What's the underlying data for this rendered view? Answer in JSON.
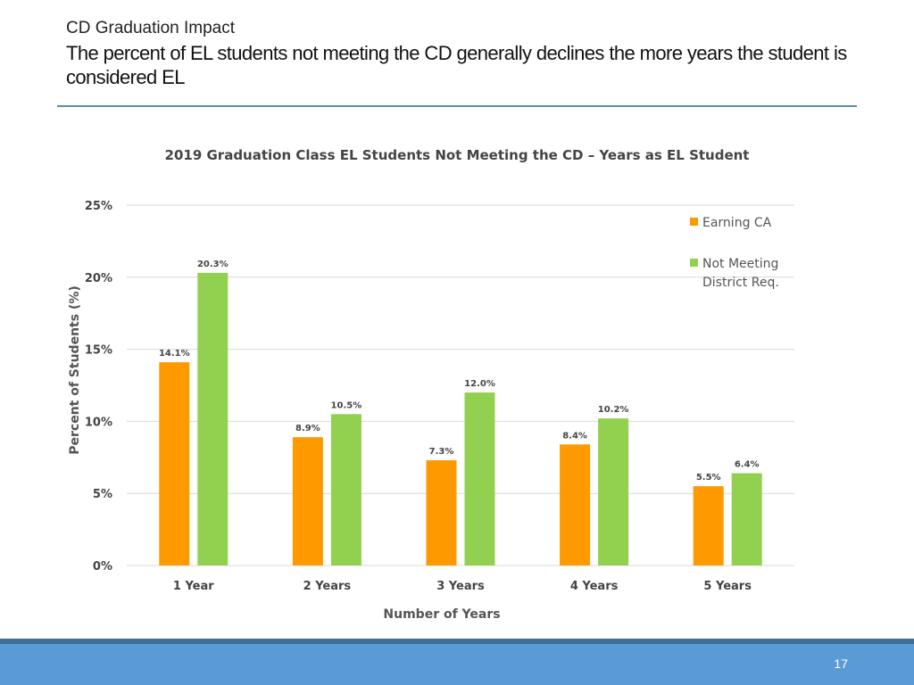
{
  "slide": {
    "title": "CD Graduation Impact",
    "subtitle": "The percent of EL students not meeting the CD generally declines the more years the student is considered EL",
    "page_number": "17"
  },
  "colors": {
    "earning_ca": "#ff9900",
    "not_meeting": "#92d050",
    "gridline": "#d9d9d9",
    "header_rule": "#5e8fa6",
    "footer": "#5b9bd5"
  },
  "chart_data": {
    "type": "bar",
    "title": "2019 Graduation Class EL Students Not Meeting the CD – Years as EL Student",
    "xlabel": "Number of Years",
    "ylabel": "Percent of Students (%)",
    "categories": [
      "1 Year",
      "2 Years",
      "3 Years",
      "4 Years",
      "5 Years"
    ],
    "ylim": [
      0,
      25
    ],
    "yticks": [
      0,
      5,
      10,
      15,
      20,
      25
    ],
    "ytick_labels": [
      "0%",
      "5%",
      "10%",
      "15%",
      "20%",
      "25%"
    ],
    "grid": true,
    "legend_position": "right",
    "series": [
      {
        "name": "Earning CA",
        "values": [
          14.1,
          8.9,
          7.3,
          8.4,
          5.5
        ],
        "labels": [
          "14.1%",
          "8.9%",
          "7.3%",
          "8.4%",
          "5.5%"
        ]
      },
      {
        "name": "Not Meeting District Req.",
        "legend_lines": [
          "Not Meeting",
          "District Req."
        ],
        "values": [
          20.3,
          10.5,
          12.0,
          10.2,
          6.4
        ],
        "labels": [
          "20.3%",
          "10.5%",
          "12.0%",
          "10.2%",
          "6.4%"
        ]
      }
    ]
  }
}
